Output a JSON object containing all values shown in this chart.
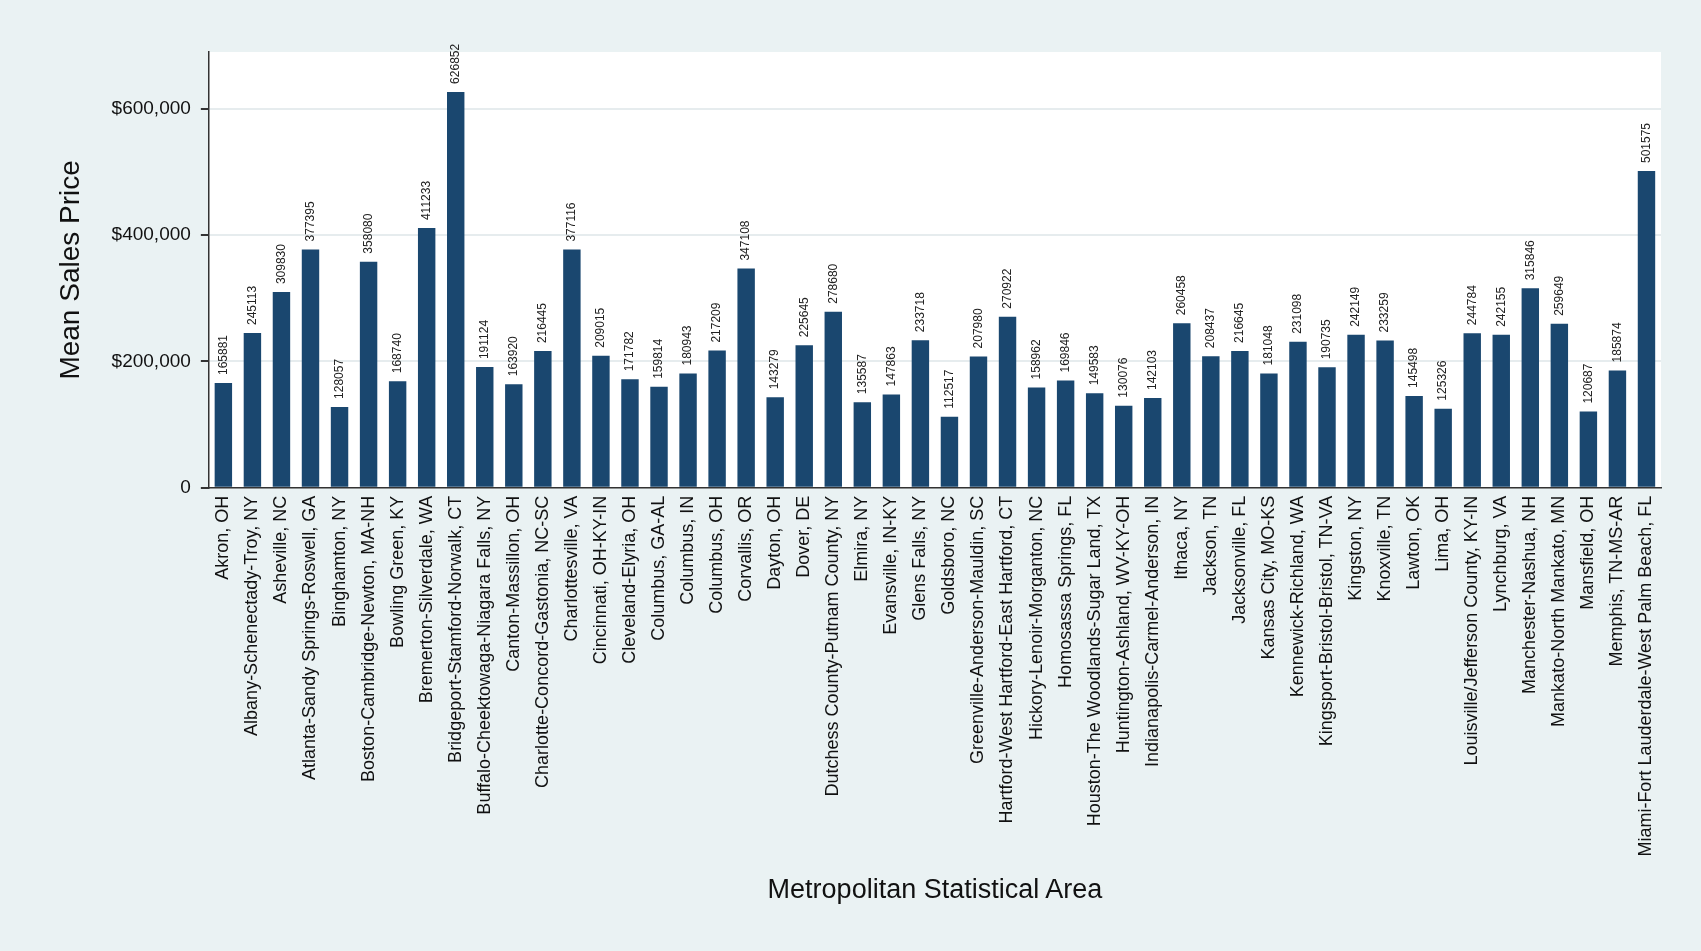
{
  "chart_data": {
    "type": "bar",
    "xlabel": "Metropolitan Statistical Area",
    "ylabel": "Mean Sales Price",
    "categories": [
      "Akron, OH",
      "Albany-Schenectady-Troy, NY",
      "Asheville, NC",
      "Atlanta-Sandy Springs-Roswell, GA",
      "Binghamton, NY",
      "Boston-Cambridge-Newton, MA-NH",
      "Bowling Green, KY",
      "Bremerton-Silverdale, WA",
      "Bridgeport-Stamford-Norwalk, CT",
      "Buffalo-Cheektowaga-Niagara Falls, NY",
      "Canton-Massillon, OH",
      "Charlotte-Concord-Gastonia, NC-SC",
      "Charlottesville, VA",
      "Cincinnati, OH-KY-IN",
      "Cleveland-Elyria, OH",
      "Columbus, GA-AL",
      "Columbus, IN",
      "Columbus, OH",
      "Corvallis, OR",
      "Dayton, OH",
      "Dover, DE",
      "Dutchess County-Putnam County, NY",
      "Elmira, NY",
      "Evansville, IN-KY",
      "Glens Falls, NY",
      "Goldsboro, NC",
      "Greenville-Anderson-Mauldin, SC",
      "Hartford-West Hartford-East Hartford, CT",
      "Hickory-Lenoir-Morganton, NC",
      "Homosassa Springs, FL",
      "Houston-The Woodlands-Sugar Land, TX",
      "Huntington-Ashland, WV-KY-OH",
      "Indianapolis-Carmel-Anderson, IN",
      "Ithaca, NY",
      "Jackson, TN",
      "Jacksonville, FL",
      "Kansas City, MO-KS",
      "Kennewick-Richland, WA",
      "Kingsport-Bristol-Bristol, TN-VA",
      "Kingston, NY",
      "Knoxville, TN",
      "Lawton, OK",
      "Lima, OH",
      "Louisville/Jefferson County, KY-IN",
      "Lynchburg, VA",
      "Manchester-Nashua, NH",
      "Mankato-North Mankato, MN",
      "Mansfield, OH",
      "Memphis, TN-MS-AR",
      "Miami-Fort Lauderdale-West Palm Beach, FL"
    ],
    "values": [
      165881,
      245113,
      309830,
      377395,
      128057,
      358080,
      168740,
      411233,
      626852,
      191124,
      163920,
      216445,
      377116,
      209015,
      171782,
      159814,
      180943,
      217209,
      347108,
      143279,
      225645,
      278680,
      135587,
      147863,
      233718,
      112517,
      207980,
      270922,
      158962,
      169846,
      149583,
      130076,
      142103,
      260458,
      208437,
      216645,
      181048,
      231098,
      190735,
      242149,
      233259,
      145498,
      125326,
      244784,
      242155,
      315846,
      259649,
      120687,
      185874,
      501575
    ],
    "color": "#1a476f",
    "data_labels": true,
    "grid": "y",
    "ylim": [
      0,
      690000
    ],
    "yticks": [
      0,
      {
        "value": 200000,
        "label": "$200,000"
      },
      {
        "value": 400000,
        "label": "$400,000"
      },
      {
        "value": 600000,
        "label": "$600,000"
      }
    ]
  }
}
